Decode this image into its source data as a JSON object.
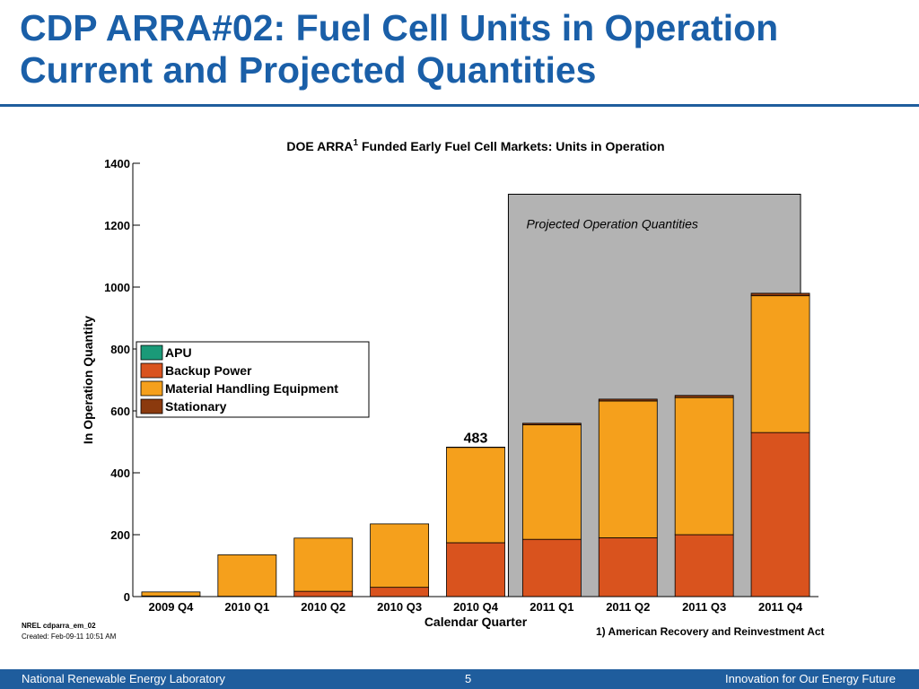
{
  "slide": {
    "title_line1": "CDP ARRA#02: Fuel Cell Units in Operation",
    "title_line2": "Current and Projected Quantities"
  },
  "notes": {
    "id": "NREL cdparra_em_02",
    "created": "Created: Feb-09-11 10:51 AM",
    "footnote": "1) American Recovery and Reinvestment Act"
  },
  "footer": {
    "left": "National Renewable Energy Laboratory",
    "page": "5",
    "right": "Innovation for Our Energy Future"
  },
  "colors": {
    "apu": "#1a9a78",
    "backup": "#d9531e",
    "mhe": "#f5a01c",
    "stationary": "#8b3a0e",
    "projected_bg": "#b3b3b3",
    "title": "#1a5fa8",
    "footer": "#1f5d9d"
  },
  "chart_data": {
    "type": "bar",
    "stacked": true,
    "title": "DOE ARRA",
    "title_superscript": "1",
    "title_rest": " Funded Early Fuel Cell Markets:  Units in Operation",
    "xlabel": "Calendar Quarter",
    "ylabel": "In Operation Quantity",
    "ylim": [
      0,
      1400
    ],
    "yticks": [
      0,
      200,
      400,
      600,
      800,
      1000,
      1200,
      1400
    ],
    "categories": [
      "2009 Q4",
      "2010 Q1",
      "2010 Q2",
      "2010 Q3",
      "2010 Q4",
      "2011 Q1",
      "2011 Q2",
      "2011 Q3",
      "2011 Q4"
    ],
    "series": [
      {
        "name": "APU",
        "color_key": "apu",
        "values": [
          0,
          0,
          0,
          0,
          0,
          0,
          0,
          0,
          0
        ]
      },
      {
        "name": "Backup Power",
        "color_key": "backup",
        "values": [
          2,
          1,
          17,
          30,
          174,
          185,
          190,
          200,
          530
        ]
      },
      {
        "name": "Material Handling Equipment",
        "color_key": "mhe",
        "values": [
          13,
          134,
          172,
          205,
          308,
          370,
          442,
          443,
          442
        ]
      },
      {
        "name": "Stationary",
        "color_key": "stationary",
        "values": [
          0,
          0,
          0,
          0,
          1,
          5,
          6,
          7,
          8
        ]
      }
    ],
    "annotations": [
      {
        "text": "483",
        "category": "2010 Q4"
      },
      {
        "text": "Projected Operation Quantities",
        "region_from": "2011 Q1",
        "region_to": "2011 Q4",
        "region_top": 1300
      }
    ],
    "legend_position": "upper-left",
    "grid": false
  }
}
